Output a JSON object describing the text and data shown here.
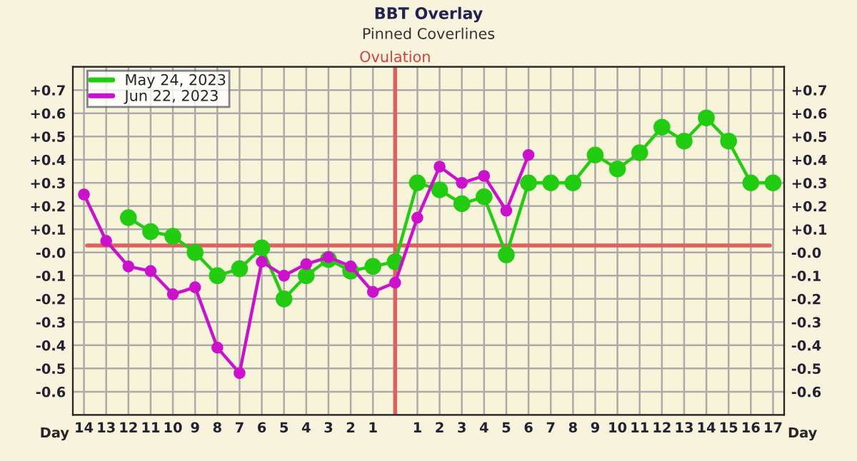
{
  "chart_data": {
    "type": "line",
    "title": "BBT Overlay",
    "subtitle": "Pinned Coverlines",
    "xlabel": "Day",
    "x": [
      -14,
      -13,
      -12,
      -11,
      -10,
      -9,
      -8,
      -7,
      -6,
      -5,
      -4,
      -3,
      -2,
      -1,
      0,
      1,
      2,
      3,
      4,
      5,
      6,
      7,
      8,
      9,
      10,
      11,
      12,
      13,
      14,
      15,
      16,
      17
    ],
    "series": [
      {
        "name": "May 24, 2023",
        "color": "#22cc11",
        "values": [
          null,
          null,
          0.15,
          0.09,
          0.07,
          0.0,
          -0.1,
          -0.07,
          0.02,
          -0.2,
          -0.1,
          -0.03,
          -0.08,
          -0.06,
          -0.04,
          0.3,
          0.27,
          0.21,
          0.24,
          -0.01,
          0.3,
          0.3,
          0.3,
          0.42,
          0.36,
          0.43,
          0.54,
          0.48,
          0.58,
          0.48,
          0.3,
          0.3
        ]
      },
      {
        "name": "Jun 22, 2023",
        "color": "#cc11cc",
        "values": [
          0.25,
          0.05,
          -0.06,
          -0.08,
          -0.18,
          -0.15,
          -0.41,
          -0.52,
          -0.04,
          -0.1,
          -0.05,
          -0.02,
          -0.06,
          -0.17,
          -0.13,
          0.15,
          0.37,
          0.3,
          0.33,
          0.18,
          0.42,
          null,
          null,
          null,
          null,
          null,
          null,
          null,
          null,
          null,
          null,
          null
        ]
      }
    ],
    "xlim": [
      -14.5,
      17.5
    ],
    "xticks": [
      {
        "value": -14,
        "label": "14"
      },
      {
        "value": -13,
        "label": "13"
      },
      {
        "value": -12,
        "label": "12"
      },
      {
        "value": -11,
        "label": "11"
      },
      {
        "value": -10,
        "label": "10"
      },
      {
        "value": -9,
        "label": "9"
      },
      {
        "value": -8,
        "label": "8"
      },
      {
        "value": -7,
        "label": "7"
      },
      {
        "value": -6,
        "label": "6"
      },
      {
        "value": -5,
        "label": "5"
      },
      {
        "value": -4,
        "label": "4"
      },
      {
        "value": -3,
        "label": "3"
      },
      {
        "value": -2,
        "label": "2"
      },
      {
        "value": -1,
        "label": "1"
      },
      {
        "value": 0,
        "label": null
      },
      1,
      2,
      3,
      4,
      5,
      6,
      7,
      8,
      9,
      10,
      11,
      12,
      13,
      14,
      15,
      16,
      17
    ],
    "ylim": [
      -0.7,
      0.8
    ],
    "yticks": [
      {
        "value": -0.6,
        "label": "-0.6"
      },
      {
        "value": -0.5,
        "label": "-0.5"
      },
      {
        "value": -0.4,
        "label": "-0.4"
      },
      {
        "value": -0.3,
        "label": "-0.3"
      },
      {
        "value": -0.2,
        "label": "-0.2"
      },
      {
        "value": -0.1,
        "label": "-0.1"
      },
      {
        "value": 0,
        "label": "-0.0"
      },
      {
        "value": 0.1,
        "label": "+0.1"
      },
      {
        "value": 0.2,
        "label": "+0.2"
      },
      {
        "value": 0.3,
        "label": "+0.3"
      },
      {
        "value": 0.4,
        "label": "+0.4"
      },
      {
        "value": 0.5,
        "label": "+0.5"
      },
      {
        "value": 0.6,
        "label": "+0.6"
      },
      {
        "value": 0.7,
        "label": "+0.7"
      }
    ],
    "y2lim": [
      -0.7,
      0.8
    ],
    "y2ticks": [
      {
        "value": -0.6,
        "label": "-0.6"
      },
      {
        "value": -0.5,
        "label": "-0.5"
      },
      {
        "value": -0.4,
        "label": "-0.4"
      },
      {
        "value": -0.3,
        "label": "-0.3"
      },
      {
        "value": -0.2,
        "label": "-0.2"
      },
      {
        "value": -0.1,
        "label": "-0.1"
      },
      {
        "value": 0,
        "label": "-0.0"
      },
      {
        "value": 0.1,
        "label": "+0.1"
      },
      {
        "value": 0.2,
        "label": "+0.2"
      },
      {
        "value": 0.3,
        "label": "+0.3"
      },
      {
        "value": 0.4,
        "label": "+0.4"
      },
      {
        "value": 0.5,
        "label": "+0.5"
      },
      {
        "value": 0.6,
        "label": "+0.6"
      },
      {
        "value": 0.7,
        "label": "+0.7"
      }
    ],
    "ref_lines": [
      {
        "axis": "x",
        "value": 0,
        "label": "Ovulation",
        "color": "#e06060"
      },
      {
        "axis": "y",
        "value": 0.03,
        "color": "#e06060"
      }
    ],
    "grid": true,
    "legend": "top left",
    "marker": "circle",
    "line_style": "solid"
  }
}
